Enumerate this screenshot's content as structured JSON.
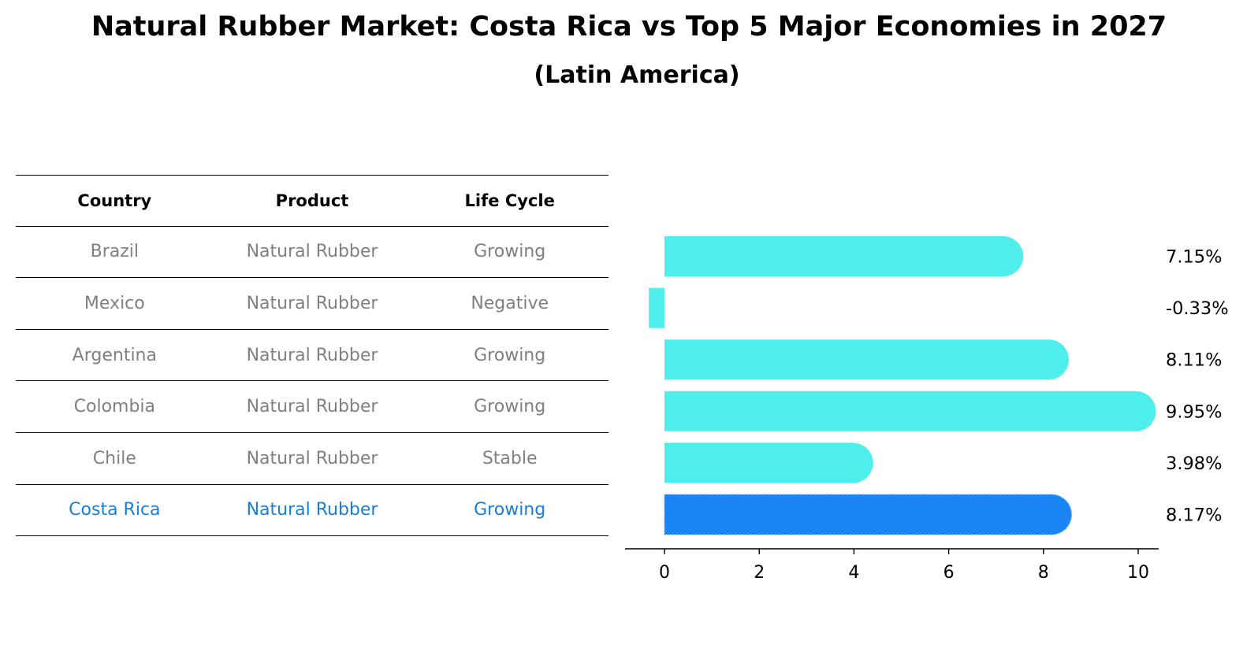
{
  "title": "Natural Rubber Market: Costa Rica vs Top 5 Major Economies in 2027",
  "subtitle": "(Latin America)",
  "table": {
    "headers": [
      "Country",
      "Product",
      "Life Cycle"
    ],
    "rows": [
      [
        "Brazil",
        "Natural Rubber",
        "Growing"
      ],
      [
        "Mexico",
        "Natural Rubber",
        "Negative"
      ],
      [
        "Argentina",
        "Natural Rubber",
        "Growing"
      ],
      [
        "Colombia",
        "Natural Rubber",
        "Growing"
      ],
      [
        "Chile",
        "Natural Rubber",
        "Stable"
      ],
      [
        "Costa Rica",
        "Natural Rubber",
        "Growing"
      ]
    ]
  },
  "colors": {
    "bar": "#4eeeec",
    "highlight_bar": "#1a84f4",
    "highlight_text": "#1a7fd4",
    "muted_text": "#808080"
  },
  "chart_data": {
    "type": "bar",
    "orientation": "horizontal",
    "title": "Natural Rubber Market: Costa Rica vs Top 5 Major Economies in 2027",
    "subtitle": "(Latin America)",
    "categories": [
      "Brazil",
      "Mexico",
      "Argentina",
      "Colombia",
      "Chile",
      "Costa Rica"
    ],
    "values": [
      7.15,
      -0.33,
      8.11,
      9.95,
      3.98,
      8.17
    ],
    "value_labels": [
      "7.15%",
      "-0.33%",
      "8.11%",
      "9.95%",
      "3.98%",
      "8.17%"
    ],
    "highlight": "Costa Rica",
    "xlabel": "",
    "ylabel": "",
    "xticks": [
      0,
      2,
      4,
      6,
      8,
      10
    ],
    "xlim": [
      -0.85,
      10.45
    ],
    "grid": false,
    "legend": "none"
  }
}
